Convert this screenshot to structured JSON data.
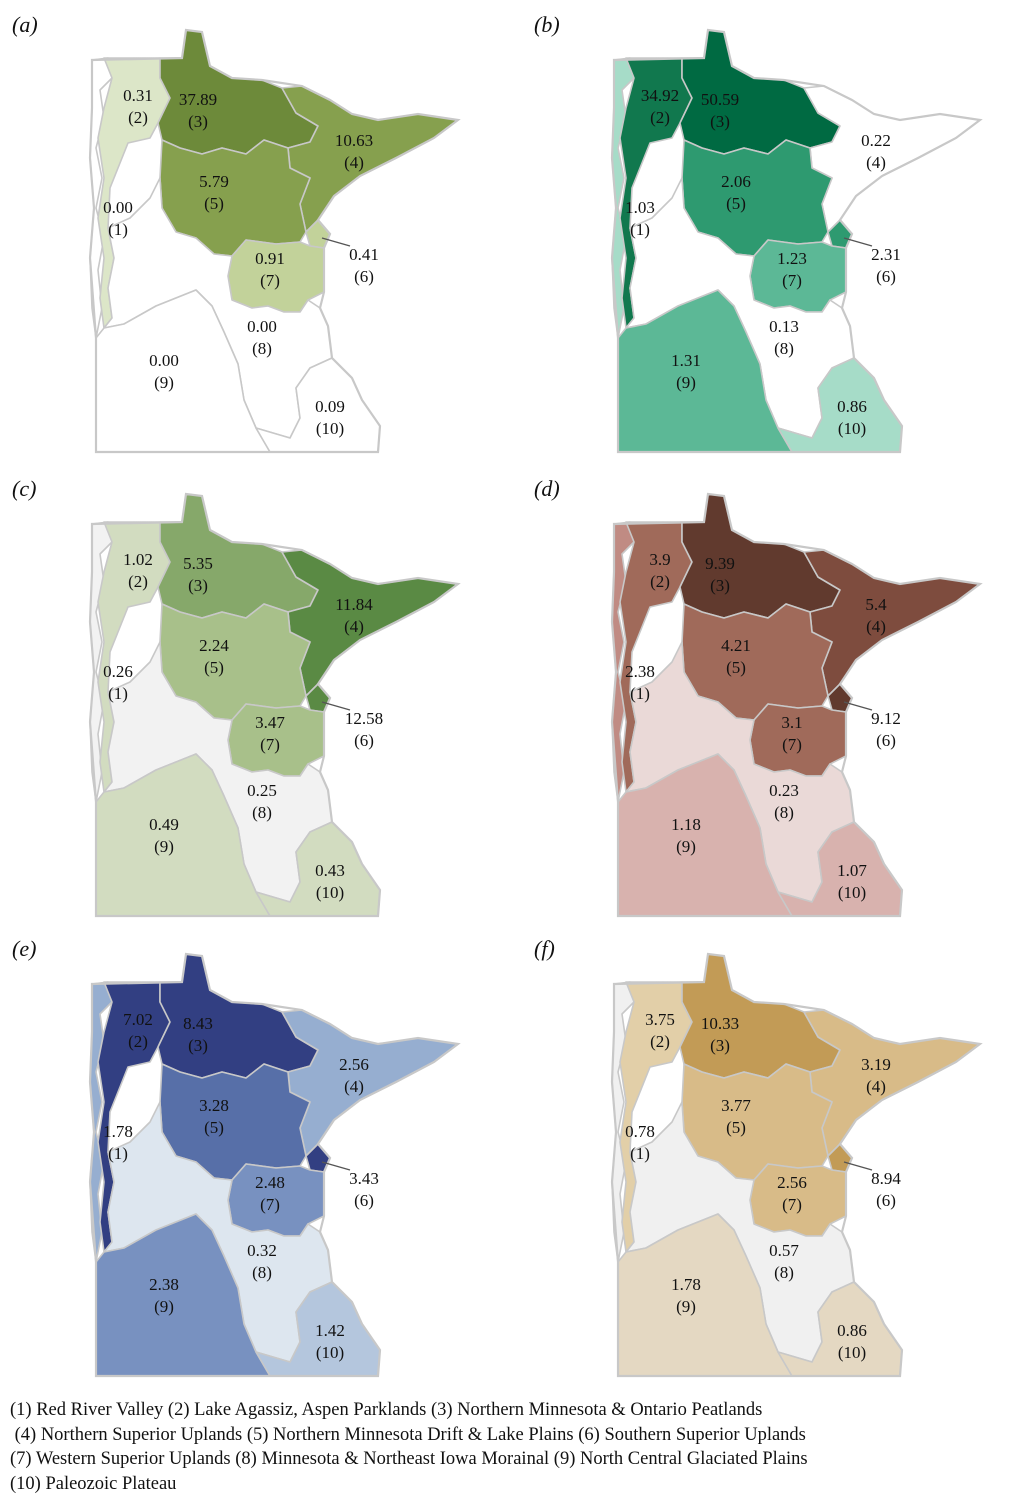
{
  "region_names": [
    "(1) Red River Valley",
    "(2) Lake Agassiz, Aspen Parklands",
    "(3) Northern Minnesota & Ontario Peatlands",
    "(4) Northern Superior Uplands",
    "(5) Northern Minnesota Drift & Lake Plains",
    "(6) Southern Superior Uplands",
    "(7) Western Superior Uplands",
    "(8) Minnesota & Northeast Iowa Morainal",
    "(9) North Central Glaciated Plains",
    "(10) Paleozoic Plateau"
  ],
  "region_ids": [
    "(1)",
    "(2)",
    "(3)",
    "(4)",
    "(5)",
    "(6)",
    "(7)",
    "(8)",
    "(9)",
    "(10)"
  ],
  "panels": [
    {
      "label": "(a)",
      "palette": [
        "#ffffff",
        "#dce6c8",
        "#c2d29a",
        "#a6bb6e",
        "#86a04e",
        "#6d8a3a"
      ],
      "border": "#c8c8c8",
      "values": [
        "0.00",
        "0.31",
        "37.89",
        "10.63",
        "5.79",
        "0.41",
        "0.91",
        "0.00",
        "0.00",
        "0.09"
      ],
      "levels": [
        0,
        1,
        5,
        4,
        4,
        2,
        2,
        0,
        0,
        0
      ]
    },
    {
      "label": "(b)",
      "palette": [
        "#ffffff",
        "#a6dcc8",
        "#5cb896",
        "#2e9a70",
        "#11784e",
        "#006a42"
      ],
      "border": "#c8c8c8",
      "values": [
        "1.03",
        "34.92",
        "50.59",
        "0.22",
        "2.06",
        "2.31",
        "1.23",
        "0.13",
        "1.31",
        "0.86"
      ],
      "levels": [
        1,
        4,
        5,
        0,
        3,
        3,
        2,
        0,
        2,
        1
      ]
    },
    {
      "label": "(c)",
      "palette": [
        "#f2f2f2",
        "#d2dcc0",
        "#a8c08a",
        "#86a86a",
        "#5a8a44",
        "#3f6f2a"
      ],
      "border": "#c8c8c8",
      "values": [
        "0.26",
        "1.02",
        "5.35",
        "11.84",
        "2.24",
        "12.58",
        "3.47",
        "0.25",
        "0.49",
        "0.43"
      ],
      "levels": [
        0,
        1,
        3,
        4,
        2,
        4,
        2,
        0,
        1,
        1
      ]
    },
    {
      "label": "(d)",
      "palette": [
        "#ead9d7",
        "#d8b2ae",
        "#c08b83",
        "#a06a5a",
        "#7e4c3e",
        "#613a2e"
      ],
      "border": "#c8c8c8",
      "values": [
        "2.38",
        "3.9",
        "9.39",
        "5.4",
        "4.21",
        "9.12",
        "3.1",
        "0.23",
        "1.18",
        "1.07"
      ],
      "levels": [
        2,
        3,
        5,
        4,
        3,
        5,
        3,
        0,
        1,
        1
      ]
    },
    {
      "label": "(e)",
      "palette": [
        "#dde6ef",
        "#b4c6dd",
        "#96aed0",
        "#7891c0",
        "#576fa8",
        "#323f82"
      ],
      "border": "#c8c8c8",
      "values": [
        "1.78",
        "7.02",
        "8.43",
        "2.56",
        "3.28",
        "3.43",
        "2.48",
        "0.32",
        "2.38",
        "1.42"
      ],
      "levels": [
        2,
        5,
        5,
        2,
        4,
        5,
        3,
        0,
        3,
        1
      ]
    },
    {
      "label": "(f)",
      "palette": [
        "#f0f0f0",
        "#e4d8c2",
        "#e2cfa8",
        "#d8bb88",
        "#cca66a",
        "#c29b56"
      ],
      "border": "#c8c8c8",
      "values": [
        "0.78",
        "3.75",
        "10.33",
        "3.19",
        "3.77",
        "8.94",
        "2.56",
        "0.57",
        "1.78",
        "0.86"
      ],
      "levels": [
        0,
        2,
        5,
        3,
        3,
        5,
        3,
        0,
        1,
        1
      ]
    }
  ]
}
